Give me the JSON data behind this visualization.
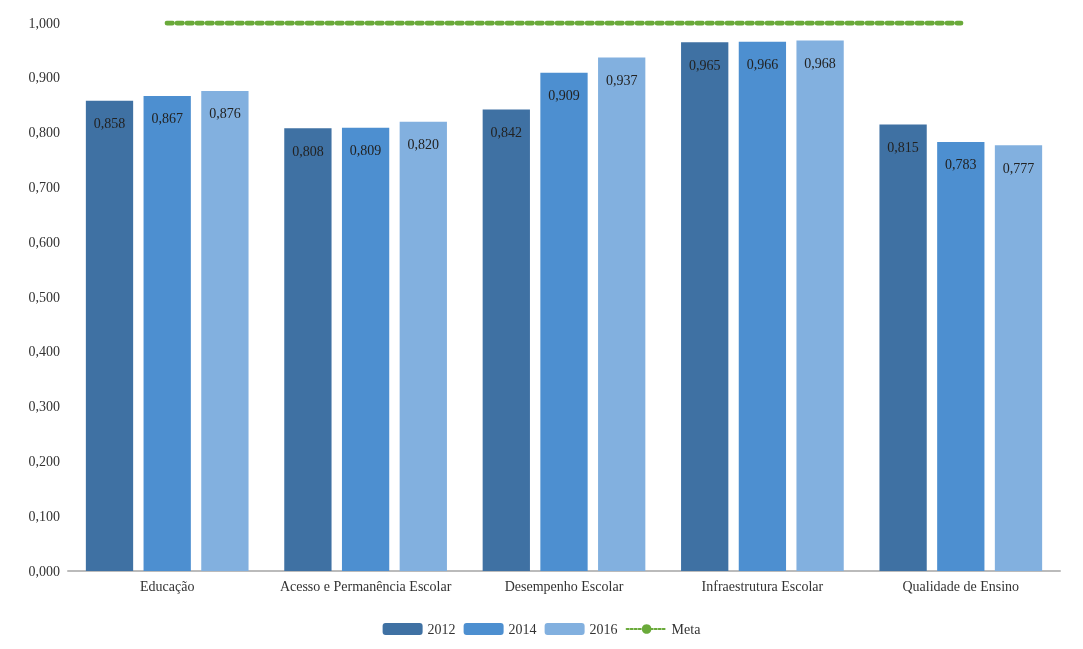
{
  "chart_data": {
    "type": "bar",
    "categories": [
      "Educação",
      "Acesso e Permanência Escolar",
      "Desempenho Escolar",
      "Infraestrutura Escolar",
      "Qualidade de Ensino"
    ],
    "series": [
      {
        "name": "2012",
        "color": "#3f71a3",
        "values": [
          0.858,
          0.808,
          0.842,
          0.965,
          0.815
        ],
        "value_labels": [
          "0,858",
          "0,808",
          "0,842",
          "0,965",
          "0,815"
        ]
      },
      {
        "name": "2014",
        "color": "#4d8fd0",
        "values": [
          0.867,
          0.809,
          0.909,
          0.966,
          0.783
        ],
        "value_labels": [
          "0,867",
          "0,809",
          "0,909",
          "0,966",
          "0,783"
        ]
      },
      {
        "name": "2016",
        "color": "#82b0df",
        "values": [
          0.876,
          0.82,
          0.937,
          0.968,
          0.777
        ],
        "value_labels": [
          "0,876",
          "0,820",
          "0,937",
          "0,968",
          "0,777"
        ]
      },
      {
        "name": "Meta",
        "type": "line",
        "color": "#6aaa3a",
        "line_style": "dotted",
        "marker": "none",
        "values": [
          1,
          1,
          1,
          1,
          1
        ]
      }
    ],
    "ylim": [
      0,
      1
    ],
    "yticks": [
      {
        "value": 0,
        "label": "0,000"
      },
      {
        "value": 0.1,
        "label": "0,100"
      },
      {
        "value": 0.2,
        "label": "0,200"
      },
      {
        "value": 0.3,
        "label": "0,300"
      },
      {
        "value": 0.4,
        "label": "0,400"
      },
      {
        "value": 0.5,
        "label": "0,500"
      },
      {
        "value": 0.6,
        "label": "0,600"
      },
      {
        "value": 0.7,
        "label": "0,700"
      },
      {
        "value": 0.8,
        "label": "0,800"
      },
      {
        "value": 0.9,
        "label": "0,900"
      },
      {
        "value": 1,
        "label": "1,000"
      }
    ],
    "grid": false,
    "legend": "bottom"
  }
}
